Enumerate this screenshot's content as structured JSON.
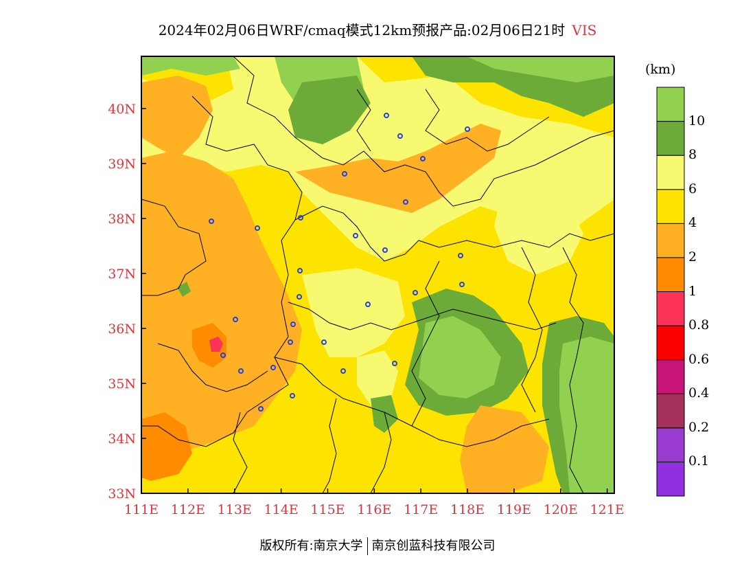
{
  "title": "2024年02月06日WRF/cmaq模式12km预报产品:02月06日21时",
  "variable": "VIS",
  "unit": "(km)",
  "x_ticks": [
    "111E",
    "112E",
    "113E",
    "114E",
    "115E",
    "116E",
    "117E",
    "118E",
    "119E",
    "120E",
    "121E"
  ],
  "y_ticks": [
    "33N",
    "34N",
    "35N",
    "36N",
    "37N",
    "38N",
    "39N",
    "40N"
  ],
  "legend": {
    "colors": [
      "#9130e0",
      "#9a3ccf",
      "#a4305c",
      "#c81478",
      "#fa0000",
      "#fc3258",
      "#ff8c00",
      "#ffb023",
      "#fce400",
      "#f7fa70",
      "#6cab37",
      "#92d050"
    ],
    "labels": [
      "0.1",
      "0.2",
      "0.4",
      "0.6",
      "0.8",
      "1",
      "2",
      "4",
      "6",
      "8",
      "10"
    ]
  },
  "copyright": {
    "left": "版权所有:南京大学",
    "right": "南京创蓝科技有限公司"
  },
  "colors": {
    "accent": "#e0343c",
    "station": "#2340e0"
  }
}
